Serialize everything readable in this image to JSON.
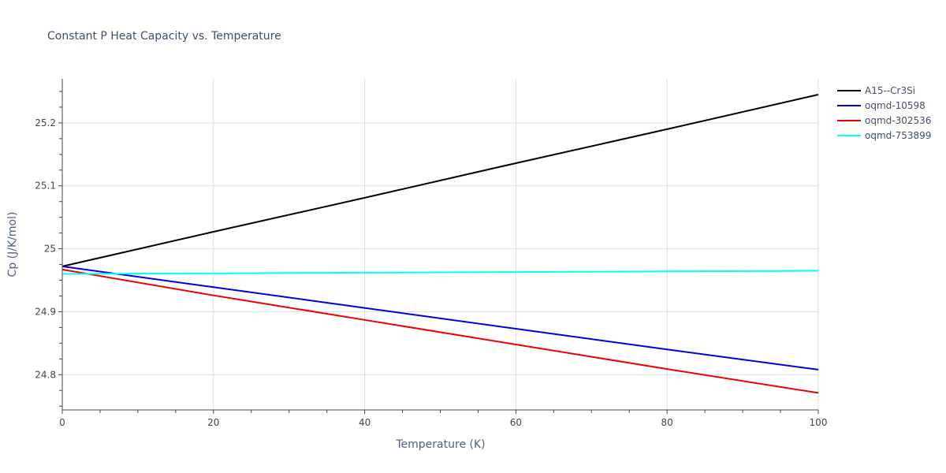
{
  "chart_data": {
    "type": "line",
    "title": "Constant P Heat Capacity vs. Temperature",
    "xlabel": "Temperature (K)",
    "ylabel": "Cp (J/K/mol)",
    "xlim": [
      0,
      100
    ],
    "ylim": [
      24.744,
      25.27
    ],
    "x_ticks": [
      0,
      20,
      40,
      60,
      80,
      100
    ],
    "x_tick_labels": [
      "0",
      "20",
      "40",
      "60",
      "80",
      "100"
    ],
    "y_ticks": [
      24.8,
      24.9,
      25.0,
      25.1,
      25.2
    ],
    "y_tick_labels": [
      "24.8",
      "24.9",
      "25",
      "25.1",
      "25.2"
    ],
    "grid": true,
    "legend_position": "top-right",
    "series": [
      {
        "name": "A15--Cr3Si",
        "color": "#000000",
        "x": [
          0,
          20,
          40,
          60,
          80,
          100
        ],
        "y": [
          24.972,
          25.027,
          25.081,
          25.136,
          25.19,
          25.245
        ]
      },
      {
        "name": "oqmd-10598",
        "color": "#0000dd",
        "x": [
          0,
          20,
          40,
          60,
          80,
          100
        ],
        "y": [
          24.972,
          24.939,
          24.906,
          24.873,
          24.84,
          24.808
        ]
      },
      {
        "name": "oqmd-302536",
        "color": "#ee0000",
        "x": [
          0,
          20,
          40,
          60,
          80,
          100
        ],
        "y": [
          24.967,
          24.926,
          24.887,
          24.848,
          24.809,
          24.771
        ]
      },
      {
        "name": "oqmd-753899",
        "color": "#00ffff",
        "x": [
          0,
          20,
          40,
          60,
          80,
          100
        ],
        "y": [
          24.96,
          24.961,
          24.962,
          24.963,
          24.964,
          24.965
        ]
      }
    ]
  }
}
